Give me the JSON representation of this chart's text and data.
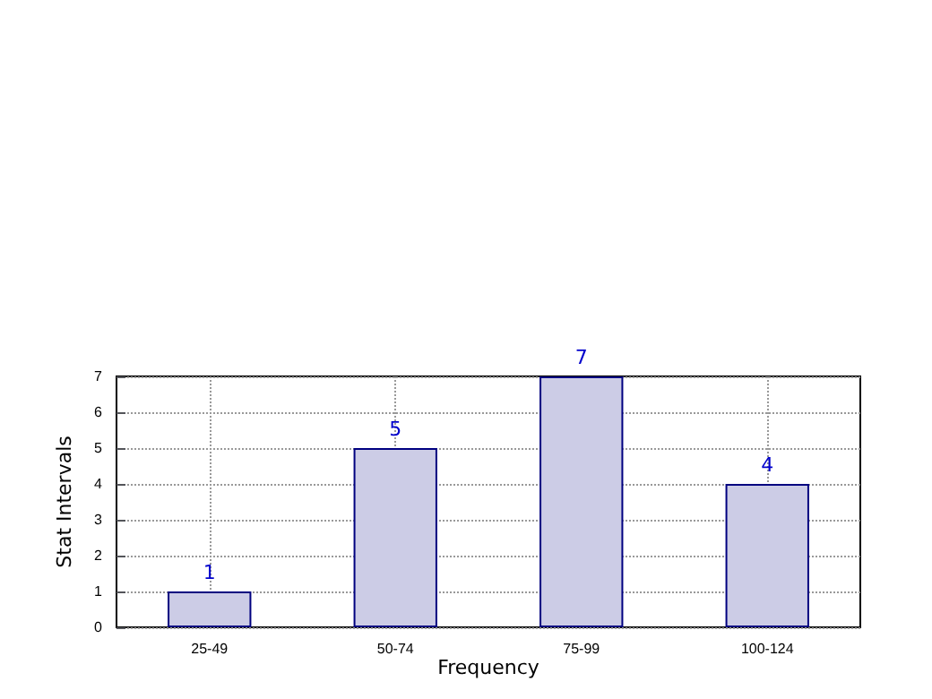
{
  "chart_data": {
    "type": "bar",
    "xlabel": "Frequency",
    "ylabel": "Stat Intervals",
    "categories": [
      "25-49",
      "50-74",
      "75-99",
      "100-124"
    ],
    "values": [
      1,
      5,
      7,
      4
    ],
    "color": "#cccce6",
    "ylim": [
      0,
      7
    ],
    "yticks": [
      0,
      1,
      2,
      3,
      4,
      5,
      6,
      7
    ],
    "grid": true,
    "data_labels": true
  }
}
